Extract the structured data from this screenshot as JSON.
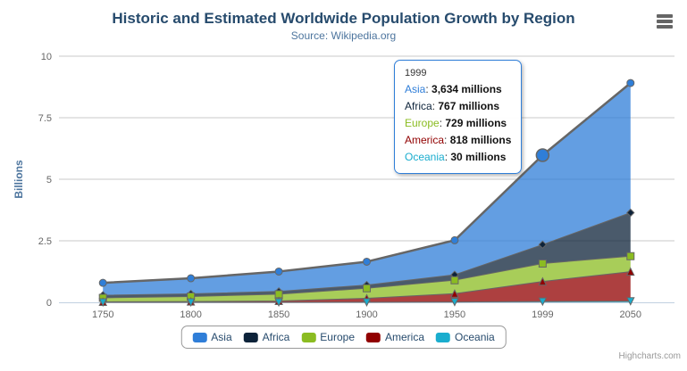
{
  "header": {
    "title": "Historic and Estimated Worldwide Population Growth by Region",
    "subtitle": "Source: Wikipedia.org"
  },
  "colors": {
    "title": "#274b6d",
    "subtitle": "#4d759e",
    "axis_label": "#666666",
    "axis_title": "#4d759e",
    "grid": "#c8c8c8",
    "axis_line": "#c0d0e0",
    "series_line": "#666666",
    "legend_text": "#274b6d",
    "tooltip_border": "#2f7ed8",
    "credits": "#999999",
    "menu_icon": "#666666"
  },
  "chart_data": {
    "type": "area",
    "stacking": "normal",
    "title": "Historic and Estimated Worldwide Population Growth by Region",
    "subtitle": "Source: Wikipedia.org",
    "categories": [
      "1750",
      "1800",
      "1850",
      "1900",
      "1950",
      "1999",
      "2050"
    ],
    "series": [
      {
        "name": "Asia",
        "color": "#2f7ed8",
        "marker": "circle",
        "values": [
          502,
          635,
          809,
          947,
          1402,
          3634,
          5268
        ]
      },
      {
        "name": "Africa",
        "color": "#0d233a",
        "marker": "diamond",
        "values": [
          106,
          107,
          111,
          133,
          221,
          767,
          1766
        ]
      },
      {
        "name": "Europe",
        "color": "#8bbc21",
        "marker": "square",
        "values": [
          163,
          203,
          276,
          408,
          547,
          729,
          628
        ]
      },
      {
        "name": "America",
        "color": "#910000",
        "marker": "triangle",
        "values": [
          18,
          31,
          54,
          156,
          339,
          818,
          1201
        ]
      },
      {
        "name": "Oceania",
        "color": "#1aadce",
        "marker": "triangle-down",
        "values": [
          2,
          2,
          2,
          6,
          13,
          30,
          46
        ]
      }
    ],
    "values_unit": "millions",
    "fill_opacity": 0.75,
    "ylabel": "Billions",
    "xlabel": "",
    "ylim": [
      0,
      10
    ],
    "yticks": [
      "0",
      "2.5",
      "5",
      "7.5",
      "10"
    ],
    "grid": true,
    "legend_position": "bottom",
    "hover": {
      "series": "Asia",
      "category": "1999",
      "radius": 7
    }
  },
  "tooltip": {
    "header": "1999",
    "rows": [
      {
        "name": "Asia",
        "color": "#2f7ed8",
        "value": "3,634 millions"
      },
      {
        "name": "Africa",
        "color": "#0d233a",
        "value": "767 millions"
      },
      {
        "name": "Europe",
        "color": "#8bbc21",
        "value": "729 millions"
      },
      {
        "name": "America",
        "color": "#910000",
        "value": "818 millions"
      },
      {
        "name": "Oceania",
        "color": "#1aadce",
        "value": "30 millions"
      }
    ]
  },
  "credits": {
    "label": "Highcharts.com"
  }
}
